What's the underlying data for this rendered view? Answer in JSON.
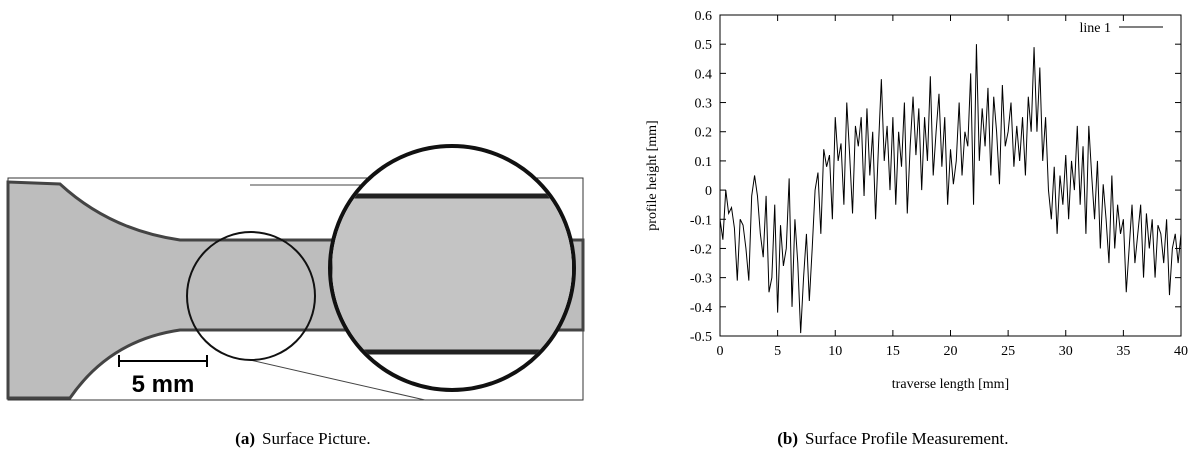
{
  "chart_data": {
    "type": "line",
    "xlabel": "traverse length [mm]",
    "ylabel": "profile height [mm]",
    "xlim": [
      0,
      40
    ],
    "xticks": [
      0,
      5,
      10,
      15,
      20,
      25,
      30,
      35,
      40
    ],
    "ylim": [
      -0.5,
      0.6
    ],
    "yticks": [
      -0.5,
      -0.4,
      -0.3,
      -0.2,
      -0.1,
      0,
      0.1,
      0.2,
      0.3,
      0.4,
      0.5,
      0.6
    ],
    "legend": "top-right",
    "series": [
      {
        "name": "line 1",
        "color": "#000000",
        "x": [
          0,
          0.25,
          0.5,
          0.75,
          1,
          1.25,
          1.5,
          1.75,
          2,
          2.25,
          2.5,
          2.75,
          3,
          3.25,
          3.5,
          3.75,
          4,
          4.25,
          4.5,
          4.75,
          5,
          5.25,
          5.5,
          5.75,
          6,
          6.25,
          6.5,
          6.75,
          7,
          7.25,
          7.5,
          7.75,
          8,
          8.25,
          8.5,
          8.75,
          9,
          9.25,
          9.5,
          9.75,
          10,
          10.25,
          10.5,
          10.75,
          11,
          11.25,
          11.5,
          11.75,
          12,
          12.25,
          12.5,
          12.75,
          13,
          13.25,
          13.5,
          13.75,
          14,
          14.25,
          14.5,
          14.75,
          15,
          15.25,
          15.5,
          15.75,
          16,
          16.25,
          16.5,
          16.75,
          17,
          17.25,
          17.5,
          17.75,
          18,
          18.25,
          18.5,
          18.75,
          19,
          19.25,
          19.5,
          19.75,
          20,
          20.25,
          20.5,
          20.75,
          21,
          21.25,
          21.5,
          21.75,
          22,
          22.25,
          22.5,
          22.75,
          23,
          23.25,
          23.5,
          23.75,
          24,
          24.25,
          24.5,
          24.75,
          25,
          25.25,
          25.5,
          25.75,
          26,
          26.25,
          26.5,
          26.75,
          27,
          27.25,
          27.5,
          27.75,
          28,
          28.25,
          28.5,
          28.75,
          29,
          29.25,
          29.5,
          29.75,
          30,
          30.25,
          30.5,
          30.75,
          31,
          31.25,
          31.5,
          31.75,
          32,
          32.25,
          32.5,
          32.75,
          33,
          33.25,
          33.5,
          33.75,
          34,
          34.25,
          34.5,
          34.75,
          35,
          35.25,
          35.5,
          35.75,
          36,
          36.25,
          36.5,
          36.75,
          37,
          37.25,
          37.5,
          37.75,
          38,
          38.25,
          38.5,
          38.75,
          39,
          39.25,
          39.5,
          39.75,
          40
        ],
        "values": [
          -0.1,
          -0.17,
          0.0,
          -0.08,
          -0.06,
          -0.13,
          -0.31,
          -0.1,
          -0.12,
          -0.2,
          -0.31,
          -0.02,
          0.05,
          -0.02,
          -0.15,
          -0.23,
          -0.02,
          -0.35,
          -0.3,
          -0.05,
          -0.42,
          -0.12,
          -0.26,
          -0.2,
          0.04,
          -0.4,
          -0.1,
          -0.25,
          -0.49,
          -0.3,
          -0.15,
          -0.38,
          -0.2,
          0.0,
          0.06,
          -0.15,
          0.14,
          0.08,
          0.12,
          -0.1,
          0.25,
          0.1,
          0.16,
          -0.05,
          0.3,
          0.12,
          -0.08,
          0.22,
          0.15,
          0.25,
          -0.02,
          0.28,
          0.05,
          0.2,
          -0.1,
          0.15,
          0.38,
          0.1,
          0.22,
          0.0,
          0.25,
          -0.05,
          0.2,
          0.08,
          0.3,
          -0.08,
          0.15,
          0.32,
          0.12,
          0.28,
          0.0,
          0.25,
          0.1,
          0.39,
          0.05,
          0.2,
          0.33,
          0.08,
          0.25,
          -0.05,
          0.14,
          0.02,
          0.1,
          0.3,
          0.05,
          0.2,
          0.15,
          0.4,
          -0.05,
          0.5,
          0.1,
          0.28,
          0.15,
          0.35,
          0.05,
          0.32,
          0.2,
          0.02,
          0.36,
          0.15,
          0.2,
          0.3,
          0.08,
          0.22,
          0.1,
          0.25,
          0.05,
          0.32,
          0.2,
          0.49,
          0.2,
          0.42,
          0.1,
          0.25,
          0.0,
          -0.1,
          0.08,
          -0.15,
          0.05,
          -0.05,
          0.12,
          -0.1,
          0.1,
          0.0,
          0.22,
          -0.05,
          0.15,
          -0.15,
          0.22,
          0.05,
          -0.1,
          0.1,
          -0.2,
          0.02,
          -0.1,
          -0.25,
          0.05,
          -0.2,
          -0.05,
          -0.15,
          -0.1,
          -0.35,
          -0.2,
          -0.05,
          -0.25,
          -0.15,
          -0.05,
          -0.3,
          -0.08,
          -0.2,
          -0.1,
          -0.3,
          -0.12,
          -0.15,
          -0.25,
          -0.1,
          -0.36,
          -0.2,
          -0.15,
          -0.25,
          -0.15
        ]
      }
    ]
  },
  "panels": {
    "a": {
      "label": "(a)",
      "caption": "Surface Picture.",
      "scale_bar": "5 mm"
    },
    "b": {
      "label": "(b)",
      "caption": "Surface Profile Measurement."
    }
  }
}
